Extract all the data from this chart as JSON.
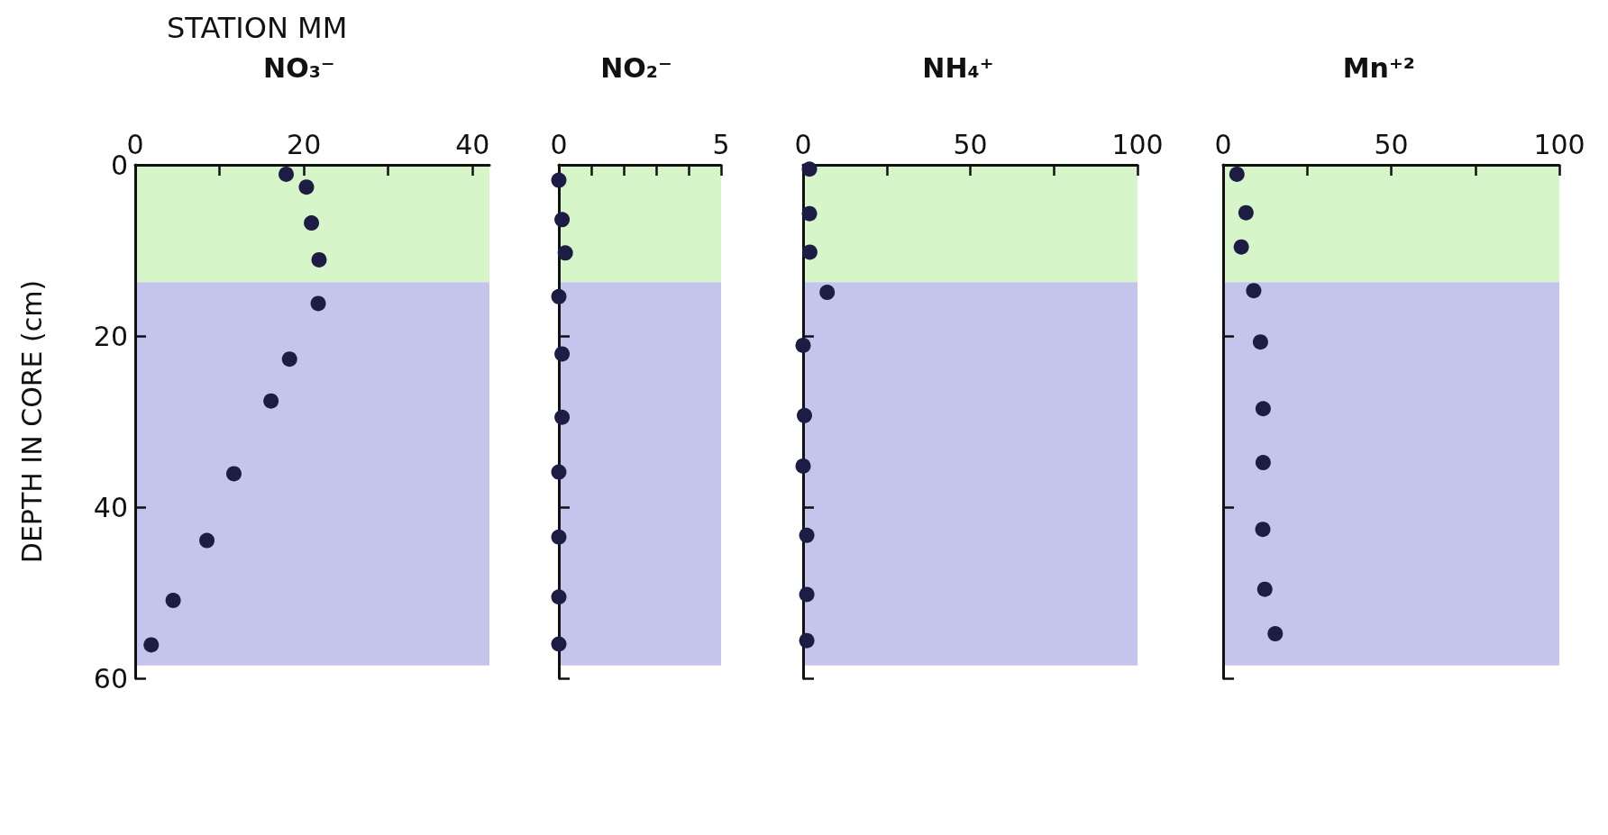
{
  "chart_data": [
    {
      "type": "scatter",
      "title": "NO₃⁻",
      "ylabel": "DEPTH IN CORE (cm)",
      "annotations": [
        "STATION MM"
      ],
      "x": [
        17.9,
        20.3,
        20.9,
        21.8,
        21.7,
        18.3,
        16.1,
        11.7,
        8.5,
        4.5,
        1.9
      ],
      "values": [
        1.1,
        2.6,
        6.8,
        11.1,
        16.2,
        22.7,
        27.6,
        36.1,
        43.9,
        50.9,
        56.1
      ],
      "color": "#1c1c44",
      "marker": "circle",
      "xlim": [
        0,
        42
      ],
      "xticks": [
        0,
        {
          "value": 10,
          "label": null
        },
        20,
        {
          "value": 30,
          "label": null
        },
        40
      ],
      "ylim": [
        60,
        0
      ],
      "yticks": [
        0,
        20,
        40,
        60
      ],
      "grid": false,
      "bands": [
        {
          "axis": "y",
          "from": 0,
          "to": 13.7,
          "color": "#d6f5c8"
        },
        {
          "axis": "y",
          "from": 13.7,
          "to": 58.5,
          "color": "#c4c4ec"
        }
      ]
    },
    {
      "type": "scatter",
      "title": "NO₂⁻",
      "x": [
        0,
        0.1,
        0.2,
        0,
        0.1,
        0.1,
        0,
        0,
        0,
        0
      ],
      "values": [
        1.8,
        6.4,
        10.3,
        15.4,
        22.1,
        29.5,
        35.9,
        43.5,
        50.5,
        56.0
      ],
      "color": "#1c1c44",
      "marker": "circle",
      "xlim": [
        0,
        5
      ],
      "xticks": [
        0,
        {
          "value": 1,
          "label": null
        },
        {
          "value": 2,
          "label": null
        },
        {
          "value": 3,
          "label": null
        },
        {
          "value": 4,
          "label": null
        },
        5
      ],
      "ylim": [
        60,
        0
      ],
      "yticks": [
        {
          "value": 0,
          "label": null
        },
        {
          "value": 20,
          "label": null
        },
        {
          "value": 40,
          "label": null
        },
        {
          "value": 60,
          "label": null
        }
      ],
      "grid": false,
      "tick_labels": "x",
      "bands": [
        {
          "axis": "y",
          "from": 0,
          "to": 13.7,
          "color": "#d6f5c8"
        },
        {
          "axis": "y",
          "from": 13.7,
          "to": 58.5,
          "color": "#c4c4ec"
        }
      ]
    },
    {
      "type": "scatter",
      "title": "NH₄⁺",
      "x": [
        1.9,
        1.9,
        2,
        7.2,
        0,
        0.4,
        0,
        1.1,
        1.1,
        1.1
      ],
      "values": [
        0.5,
        5.7,
        10.2,
        14.9,
        21.1,
        29.3,
        35.2,
        43.3,
        50.2,
        55.6
      ],
      "color": "#1c1c44",
      "marker": "circle",
      "xlim": [
        0,
        100
      ],
      "xticks": [
        0,
        {
          "value": 25,
          "label": null
        },
        50,
        {
          "value": 75,
          "label": null
        },
        100
      ],
      "ylim": [
        60,
        0
      ],
      "yticks": [
        {
          "value": 0,
          "label": null
        },
        {
          "value": 20,
          "label": null
        },
        {
          "value": 40,
          "label": null
        },
        {
          "value": 60,
          "label": null
        }
      ],
      "grid": false,
      "tick_labels": "x",
      "bands": [
        {
          "axis": "y",
          "from": 0,
          "to": 13.7,
          "color": "#d6f5c8"
        },
        {
          "axis": "y",
          "from": 13.7,
          "to": 58.5,
          "color": "#c4c4ec"
        }
      ]
    },
    {
      "type": "scatter",
      "title": "Mn⁺²",
      "x": [
        4.1,
        6.8,
        5.4,
        9.1,
        11.1,
        11.9,
        11.9,
        11.8,
        12.4,
        15.5
      ],
      "values": [
        1.1,
        5.6,
        9.6,
        14.7,
        20.7,
        28.5,
        34.8,
        42.6,
        49.6,
        54.8
      ],
      "color": "#1c1c44",
      "marker": "circle",
      "xlim": [
        0,
        100
      ],
      "xticks": [
        0,
        {
          "value": 25,
          "label": null
        },
        50,
        {
          "value": 75,
          "label": null
        },
        100
      ],
      "ylim": [
        60,
        0
      ],
      "yticks": [
        {
          "value": 0,
          "label": null
        },
        {
          "value": 20,
          "label": null
        },
        {
          "value": 40,
          "label": null
        },
        {
          "value": 60,
          "label": null
        }
      ],
      "grid": false,
      "tick_labels": "x",
      "bands": [
        {
          "axis": "y",
          "from": 0,
          "to": 13.7,
          "color": "#d6f5c8"
        },
        {
          "axis": "y",
          "from": 13.7,
          "to": 58.5,
          "color": "#c4c4ec"
        }
      ]
    }
  ]
}
